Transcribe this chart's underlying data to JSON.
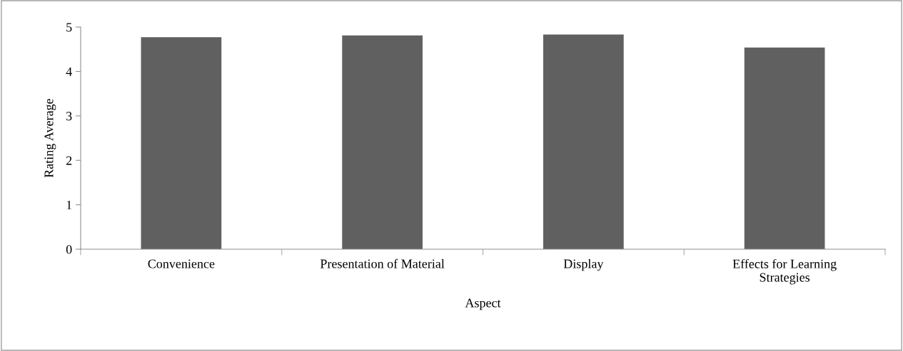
{
  "chart_data": {
    "type": "bar",
    "xlabel": "Aspect",
    "ylabel": "Rating Average",
    "categories": [
      "Convenience",
      "Presentation of Material",
      "Display",
      "Effects for Learning\nStrategies"
    ],
    "values": [
      4.77,
      4.81,
      4.83,
      4.54
    ],
    "color": "#606060",
    "ylim": [
      0,
      5
    ],
    "yticks": [
      0,
      1,
      2,
      3,
      4,
      5
    ],
    "grid": false
  }
}
